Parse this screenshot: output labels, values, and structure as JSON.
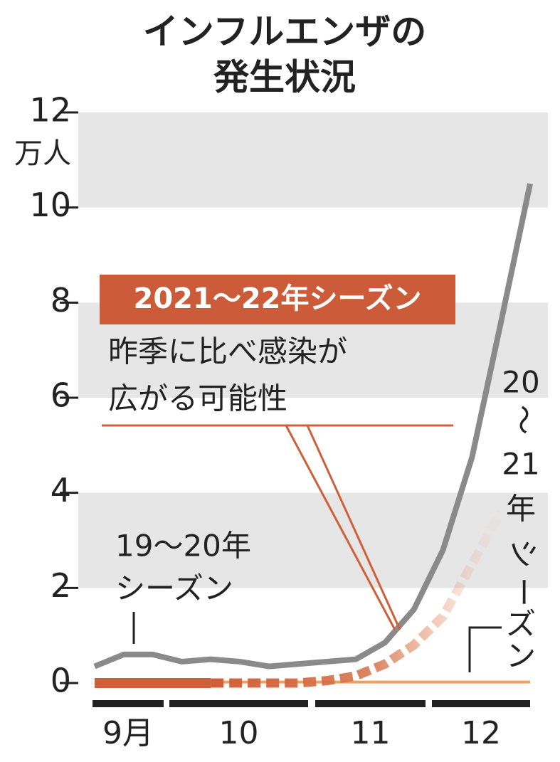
{
  "chart_data": {
    "type": "line",
    "title_lines": [
      "インフルエンザの",
      "発生状況"
    ],
    "y_unit": "万人",
    "categories": [
      null,
      null,
      null,
      null,
      null,
      null,
      null,
      null,
      null,
      null,
      null,
      null,
      null,
      null,
      null,
      null
    ],
    "x_groups": [
      "9月",
      "10",
      "11",
      "12"
    ],
    "ylim": [
      0,
      12
    ],
    "yticks": [
      0,
      2,
      4,
      6,
      8,
      10,
      12
    ],
    "grid": "bands",
    "series": [
      {
        "name": "19〜20年シーズン",
        "name_lines": [
          "19〜20年",
          "シーズン"
        ],
        "color": "#8a8a8a",
        "values": [
          0.35,
          0.6,
          0.6,
          0.45,
          0.5,
          0.45,
          0.35,
          0.4,
          0.45,
          0.5,
          0.85,
          1.55,
          2.8,
          4.75,
          7.6,
          10.5
        ]
      },
      {
        "name": "20〜21年シーズン",
        "name_lines": [
          "20",
          "〜",
          "21",
          "年",
          "シ",
          "ー",
          "ズ",
          "ン"
        ],
        "color": "#e9a260",
        "values": [
          0.02,
          0.02,
          0.02,
          0.02,
          0.02,
          0.02,
          0.02,
          0.02,
          0.02,
          0.02,
          0.02,
          0.02,
          0.02,
          0.02,
          0.02,
          0.02
        ]
      },
      {
        "name": "2021〜22年シーズン",
        "color": "#cf5f3a",
        "dashed_from": 4,
        "values": [
          0.0,
          0.0,
          0.0,
          0.0,
          0.0,
          0.0,
          0.0,
          0.0,
          0.05,
          0.15,
          0.4,
          0.8,
          1.4,
          2.5,
          3.6,
          null
        ]
      }
    ],
    "annotation_lines": [
      "昨季に比べ感染が",
      "広がる可能性"
    ]
  }
}
